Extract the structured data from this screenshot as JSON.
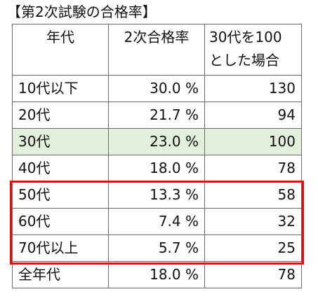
{
  "title": "【第2次試験の合格率】",
  "headers": {
    "col1": "年代",
    "col2": "2次合格率",
    "col3_line1": "30代を100",
    "col3_line2": "とした場合"
  },
  "rows": [
    {
      "age": "10代以下",
      "rate": "30.0 %",
      "index": "130"
    },
    {
      "age": "20代",
      "rate": "21.7 %",
      "index": "94"
    },
    {
      "age": "30代",
      "rate": "23.0 %",
      "index": "100"
    },
    {
      "age": "40代",
      "rate": "18.0 %",
      "index": "78"
    },
    {
      "age": "50代",
      "rate": "13.3 %",
      "index": "58"
    },
    {
      "age": "60代",
      "rate": "7.4 %",
      "index": "32"
    },
    {
      "age": "70代以上",
      "rate": "5.7 %",
      "index": "25"
    },
    {
      "age": "全年代",
      "rate": "18.0 %",
      "index": "78"
    }
  ],
  "colors": {
    "highlight_row_bg": "#e2efda",
    "emphasis_box": "#e30b0b",
    "grid_border": "#6a6a6a"
  }
}
